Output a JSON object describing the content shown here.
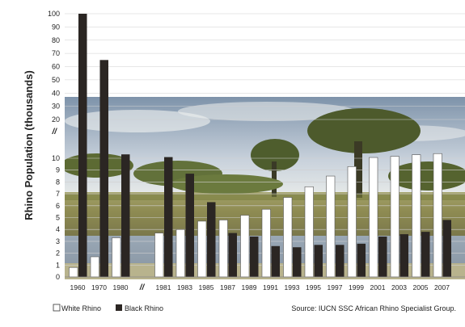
{
  "chart_data": {
    "type": "bar",
    "ylabel": "Rhino Population (thousands)",
    "y_scale": "broken: 0–10 in steps of 1, axis break, then 20–100 in steps of 10",
    "y_ticks": [
      "0",
      "1",
      "2",
      "3",
      "4",
      "5",
      "6",
      "7",
      "8",
      "9",
      "10",
      "//",
      "20",
      "30",
      "40",
      "50",
      "60",
      "70",
      "80",
      "90",
      "100"
    ],
    "categories": [
      "1960",
      "1970",
      "1980",
      "//",
      "1981",
      "1983",
      "1985",
      "1987",
      "1989",
      "1991",
      "1993",
      "1995",
      "1997",
      "1999",
      "2001",
      "2003",
      "2005",
      "2007"
    ],
    "series": [
      {
        "name": "White Rhino",
        "color": "#ffffff",
        "values": [
          0.8,
          1.7,
          3.3,
          null,
          3.7,
          4.0,
          4.7,
          4.8,
          5.2,
          5.7,
          6.7,
          7.6,
          8.5,
          9.3,
          10.2,
          10.5,
          10.9,
          11.2
        ]
      },
      {
        "name": "Black Rhino",
        "color": "#2b2623",
        "values": [
          100,
          65,
          11,
          null,
          10.3,
          8.7,
          6.3,
          3.7,
          3.4,
          2.6,
          2.5,
          2.7,
          2.7,
          2.8,
          3.4,
          3.6,
          3.8,
          4.8
        ]
      }
    ],
    "grid": true,
    "legend_position": "bottom-left",
    "source": "Source: IUCN SSC African Rhino Specialist Group.",
    "background": "savanna landscape photograph"
  }
}
